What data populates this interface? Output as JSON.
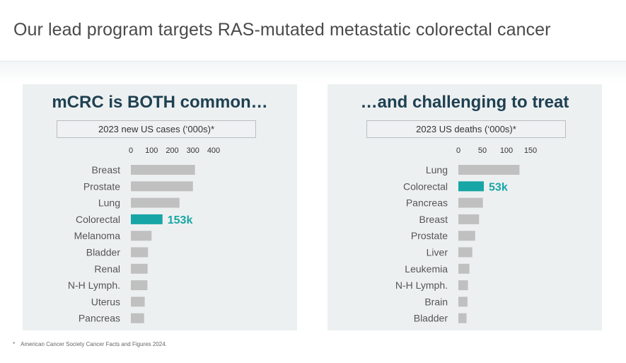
{
  "header": {
    "title": "Our lead program targets RAS-mutated metastatic colorectal cancer"
  },
  "colors": {
    "bar_default": "#c0c0c0",
    "bar_highlight": "#17a6a5",
    "title": "#1f4152",
    "category_text": "#555555"
  },
  "panels": [
    {
      "title": "mCRC is BOTH common…",
      "metric_label": "2023 new US cases (‘000s)*",
      "chart_data": {
        "type": "bar",
        "orientation": "horizontal",
        "categories": [
          "Breast",
          "Prostate",
          "Lung",
          "Colorectal",
          "Melanoma",
          "Bladder",
          "Renal",
          "N-H Lymph.",
          "Uterus",
          "Pancreas"
        ],
        "values": [
          310,
          300,
          235,
          153,
          100,
          83,
          81,
          80,
          67,
          64
        ],
        "xlim": [
          0,
          400
        ],
        "xticks": [
          "0",
          "100",
          "200",
          "300",
          "400"
        ],
        "highlight_index": 3,
        "data_labels": [
          "",
          "",
          "",
          "153k",
          "",
          "",
          "",
          "",
          "",
          ""
        ]
      }
    },
    {
      "title": "…and challenging to treat",
      "metric_label": "2023 US deaths (‘000s)*",
      "chart_data": {
        "type": "bar",
        "orientation": "horizontal",
        "categories": [
          "Lung",
          "Colorectal",
          "Pancreas",
          "Breast",
          "Prostate",
          "Liver",
          "Leukemia",
          "N-H Lymph.",
          "Brain",
          "Bladder"
        ],
        "values": [
          127,
          53,
          51,
          43,
          35,
          29,
          23,
          20,
          19,
          17
        ],
        "xlim": [
          0,
          150
        ],
        "xticks": [
          "0",
          "50",
          "100",
          "150"
        ],
        "highlight_index": 1,
        "data_labels": [
          "",
          "53k",
          "",
          "",
          "",
          "",
          "",
          "",
          "",
          ""
        ]
      }
    }
  ],
  "footnote": {
    "mark": "*",
    "text": "American Cancer Society Cancer Facts and Figures 2024."
  }
}
